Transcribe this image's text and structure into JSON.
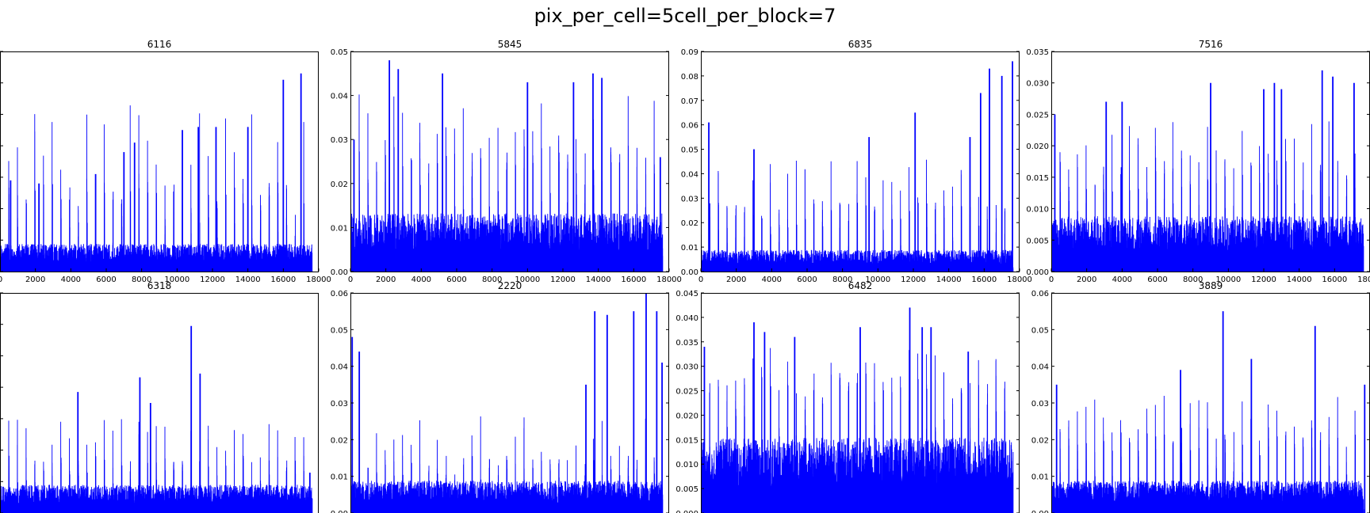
{
  "suptitle": "pix_per_cell=5cell_per_block=7",
  "colors": {
    "series": "#0000ff",
    "axes": "#000000",
    "background": "#ffffff"
  },
  "chart_data": [
    {
      "type": "line",
      "title": "6116",
      "xlim": [
        0,
        18000
      ],
      "ylim": [
        0,
        0.07
      ],
      "xticks": [
        "0",
        "2000",
        "4000",
        "6000",
        "8000",
        "10000",
        "12000",
        "14000",
        "16000",
        "18000"
      ],
      "yticks": [],
      "n_points": 17640,
      "base_level": 0.004,
      "spike_min": 0.022,
      "spike_max": 0.063,
      "peaks": [
        [
          600,
          0.029
        ],
        [
          2200,
          0.028
        ],
        [
          5400,
          0.031
        ],
        [
          7000,
          0.038
        ],
        [
          7600,
          0.041
        ],
        [
          10300,
          0.045
        ],
        [
          11200,
          0.046
        ],
        [
          12200,
          0.046
        ],
        [
          14000,
          0.046
        ],
        [
          16000,
          0.061
        ],
        [
          17000,
          0.063
        ]
      ],
      "grid": false,
      "legend": "none"
    },
    {
      "type": "line",
      "title": "5845",
      "xlim": [
        0,
        18000
      ],
      "ylim": [
        0,
        0.05
      ],
      "xticks": [
        "0",
        "2000",
        "4000",
        "6000",
        "8000",
        "10000",
        "12000",
        "14000",
        "16000",
        "18000"
      ],
      "yticks": [
        "0.00",
        "0.01",
        "0.02",
        "0.03",
        "0.04",
        "0.05"
      ],
      "n_points": 17640,
      "base_level": 0.006,
      "spike_min": 0.022,
      "spike_max": 0.045,
      "peaks": [
        [
          200,
          0.03
        ],
        [
          2200,
          0.048
        ],
        [
          2700,
          0.046
        ],
        [
          5200,
          0.045
        ],
        [
          10000,
          0.043
        ],
        [
          12600,
          0.043
        ],
        [
          13700,
          0.045
        ],
        [
          14200,
          0.044
        ],
        [
          17500,
          0.026
        ]
      ],
      "grid": false,
      "legend": "none"
    },
    {
      "type": "line",
      "title": "6835",
      "xlim": [
        0,
        18000
      ],
      "ylim": [
        0,
        0.09
      ],
      "xticks": [
        "0",
        "2000",
        "4000",
        "6000",
        "8000",
        "10000",
        "12000",
        "14000",
        "16000",
        "18000"
      ],
      "yticks": [
        "0.00",
        "0.01",
        "0.02",
        "0.03",
        "0.04",
        "0.05",
        "0.06",
        "0.07",
        "0.08",
        "0.09"
      ],
      "n_points": 17640,
      "base_level": 0.004,
      "spike_min": 0.022,
      "spike_max": 0.052,
      "peaks": [
        [
          450,
          0.061
        ],
        [
          3000,
          0.05
        ],
        [
          9500,
          0.055
        ],
        [
          12100,
          0.065
        ],
        [
          15200,
          0.055
        ],
        [
          15800,
          0.073
        ],
        [
          16300,
          0.083
        ],
        [
          17000,
          0.08
        ],
        [
          17600,
          0.086
        ]
      ],
      "grid": false,
      "legend": "none"
    },
    {
      "type": "line",
      "title": "7516",
      "xlim": [
        0,
        18000
      ],
      "ylim": [
        0,
        0.035
      ],
      "xticks": [
        "0",
        "2000",
        "4000",
        "6000",
        "8000",
        "10000",
        "12000",
        "14000",
        "16000",
        "18000"
      ],
      "yticks": [
        "0.000",
        "0.005",
        "0.010",
        "0.015",
        "0.020",
        "0.025",
        "0.030",
        "0.035"
      ],
      "n_points": 17640,
      "base_level": 0.004,
      "spike_min": 0.014,
      "spike_max": 0.027,
      "peaks": [
        [
          200,
          0.025
        ],
        [
          3100,
          0.027
        ],
        [
          4000,
          0.027
        ],
        [
          9000,
          0.03
        ],
        [
          12000,
          0.029
        ],
        [
          12600,
          0.03
        ],
        [
          13000,
          0.029
        ],
        [
          15300,
          0.032
        ],
        [
          15900,
          0.031
        ],
        [
          17100,
          0.03
        ]
      ],
      "grid": false,
      "legend": "none"
    },
    {
      "type": "line",
      "title": "6318",
      "xlim": [
        0,
        18000
      ],
      "ylim": [
        0,
        0.06
      ],
      "xticks": [],
      "yticks": [],
      "n_points": 17640,
      "base_level": 0.0035,
      "spike_min": 0.012,
      "spike_max": 0.03,
      "peaks": [
        [
          4400,
          0.033
        ],
        [
          7900,
          0.037
        ],
        [
          8500,
          0.03
        ],
        [
          10800,
          0.051
        ],
        [
          11300,
          0.038
        ],
        [
          17500,
          0.011
        ]
      ],
      "grid": false,
      "legend": "none"
    },
    {
      "type": "line",
      "title": "2220",
      "xlim": [
        0,
        18000
      ],
      "ylim": [
        0,
        0.06
      ],
      "xticks": [],
      "yticks": [
        "0.00",
        "0.01",
        "0.02",
        "0.03",
        "0.04",
        "0.05",
        "0.06"
      ],
      "n_points": 17640,
      "base_level": 0.004,
      "spike_min": 0.012,
      "spike_max": 0.03,
      "peaks": [
        [
          100,
          0.048
        ],
        [
          500,
          0.044
        ],
        [
          13300,
          0.035
        ],
        [
          13800,
          0.055
        ],
        [
          14500,
          0.054
        ],
        [
          16000,
          0.055
        ],
        [
          16700,
          0.06
        ],
        [
          17300,
          0.055
        ],
        [
          17600,
          0.041
        ]
      ],
      "grid": false,
      "legend": "none"
    },
    {
      "type": "line",
      "title": "6482",
      "xlim": [
        0,
        18000
      ],
      "ylim": [
        0,
        0.045
      ],
      "xticks": [],
      "yticks": [
        "0.000",
        "0.005",
        "0.010",
        "0.015",
        "0.020",
        "0.025",
        "0.030",
        "0.035",
        "0.040",
        "0.045"
      ],
      "n_points": 17640,
      "base_level": 0.007,
      "spike_min": 0.022,
      "spike_max": 0.037,
      "peaks": [
        [
          200,
          0.034
        ],
        [
          3000,
          0.039
        ],
        [
          3600,
          0.037
        ],
        [
          5300,
          0.036
        ],
        [
          9000,
          0.038
        ],
        [
          11800,
          0.042
        ],
        [
          12500,
          0.038
        ],
        [
          13000,
          0.038
        ],
        [
          15100,
          0.033
        ]
      ],
      "grid": false,
      "legend": "none"
    },
    {
      "type": "line",
      "title": "3889",
      "xlim": [
        0,
        18000
      ],
      "ylim": [
        0,
        0.06
      ],
      "xticks": [],
      "yticks": [
        "0.00",
        "0.01",
        "0.02",
        "0.03",
        "0.04",
        "0.05",
        "0.06"
      ],
      "n_points": 17640,
      "base_level": 0.004,
      "spike_min": 0.018,
      "spike_max": 0.036,
      "peaks": [
        [
          300,
          0.035
        ],
        [
          7300,
          0.039
        ],
        [
          9700,
          0.055
        ],
        [
          11300,
          0.042
        ],
        [
          14900,
          0.051
        ],
        [
          17700,
          0.035
        ]
      ],
      "grid": false,
      "legend": "none"
    }
  ]
}
